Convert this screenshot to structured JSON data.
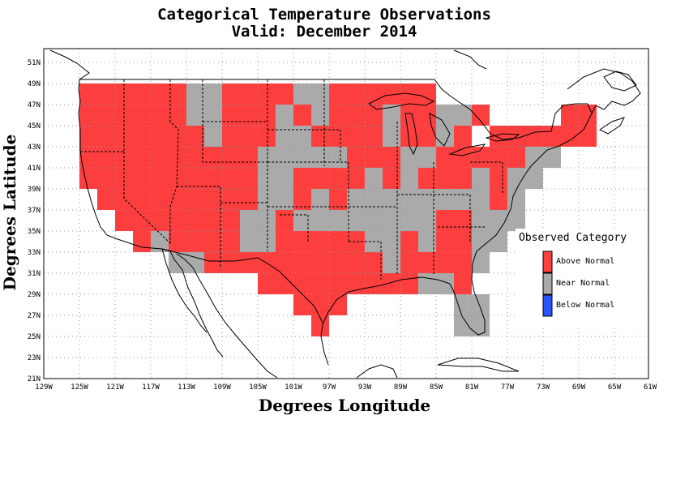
{
  "title_line1": "Categorical Temperature Observations",
  "title_line2": "Valid: December 2014",
  "xlabel": "Degrees Longitude",
  "ylabel": "Degrees Latitude",
  "colors": {
    "above": "#fd3e3e",
    "near": "#aaaaaa",
    "below": "#2b55ff"
  },
  "map_data": {
    "type": "gridded-categorical-map",
    "lon_range": [
      -129,
      -61
    ],
    "lat_range": [
      21,
      52
    ],
    "cell_size_degrees": 2,
    "x_ticks": [
      "129W",
      "125W",
      "121W",
      "117W",
      "113W",
      "109W",
      "105W",
      "101W",
      "97W",
      "93W",
      "89W",
      "85W",
      "81W",
      "77W",
      "73W",
      "69W",
      "65W",
      "61W"
    ],
    "y_ticks": [
      "21N",
      "23N",
      "25N",
      "27N",
      "29N",
      "31N",
      "33N",
      "35N",
      "37N",
      "39N",
      "41N",
      "43N",
      "45N",
      "47N",
      "49N",
      "51N"
    ],
    "legend": {
      "title": "Observed Category",
      "items": [
        {
          "label": "Above Normal",
          "color_key": "above"
        },
        {
          "label": "Near Normal",
          "color_key": "near"
        },
        {
          "label": "Below Normal",
          "color_key": "below"
        }
      ]
    },
    "cell_rows": [
      {
        "lat": 47,
        "cells": [
          [
            -125,
            -113,
            "above"
          ],
          [
            -113,
            -109,
            "near"
          ],
          [
            -109,
            -101,
            "above"
          ],
          [
            -101,
            -97,
            "near"
          ],
          [
            -97,
            -85,
            "above"
          ]
        ]
      },
      {
        "lat": 45,
        "cells": [
          [
            -125,
            -113,
            "above"
          ],
          [
            -113,
            -109,
            "near"
          ],
          [
            -109,
            -103,
            "above"
          ],
          [
            -103,
            -101,
            "near"
          ],
          [
            -101,
            -99,
            "above"
          ],
          [
            -99,
            -97,
            "near"
          ],
          [
            -97,
            -91,
            "above"
          ],
          [
            -91,
            -89,
            "near"
          ],
          [
            -89,
            -85,
            "above"
          ],
          [
            -85,
            -81,
            "near"
          ],
          [
            -81,
            -79,
            "above"
          ],
          [
            -71,
            -67,
            "above"
          ]
        ]
      },
      {
        "lat": 43,
        "cells": [
          [
            -125,
            -111,
            "above"
          ],
          [
            -111,
            -109,
            "near"
          ],
          [
            -109,
            -103,
            "above"
          ],
          [
            -103,
            -99,
            "near"
          ],
          [
            -99,
            -91,
            "above"
          ],
          [
            -91,
            -89,
            "near"
          ],
          [
            -89,
            -85,
            "above"
          ],
          [
            -85,
            -83,
            "near"
          ],
          [
            -83,
            -81,
            "above"
          ],
          [
            -79,
            -67,
            "above"
          ]
        ]
      },
      {
        "lat": 41,
        "cells": [
          [
            -125,
            -105,
            "above"
          ],
          [
            -105,
            -95,
            "near"
          ],
          [
            -95,
            -89,
            "above"
          ],
          [
            -89,
            -85,
            "near"
          ],
          [
            -85,
            -75,
            "above"
          ],
          [
            -75,
            -71,
            "near"
          ]
        ]
      },
      {
        "lat": 39,
        "cells": [
          [
            -125,
            -105,
            "above"
          ],
          [
            -105,
            -101,
            "near"
          ],
          [
            -101,
            -93,
            "above"
          ],
          [
            -93,
            -91,
            "near"
          ],
          [
            -91,
            -89,
            "above"
          ],
          [
            -89,
            -87,
            "near"
          ],
          [
            -87,
            -81,
            "above"
          ],
          [
            -81,
            -79,
            "near"
          ],
          [
            -79,
            -77,
            "above"
          ],
          [
            -77,
            -73,
            "near"
          ]
        ]
      },
      {
        "lat": 37,
        "cells": [
          [
            -123,
            -105,
            "above"
          ],
          [
            -105,
            -101,
            "near"
          ],
          [
            -101,
            -99,
            "above"
          ],
          [
            -99,
            -97,
            "near"
          ],
          [
            -97,
            -95,
            "above"
          ],
          [
            -95,
            -79,
            "near"
          ],
          [
            -79,
            -77,
            "above"
          ],
          [
            -77,
            -75,
            "near"
          ]
        ]
      },
      {
        "lat": 35,
        "cells": [
          [
            -121,
            -107,
            "above"
          ],
          [
            -107,
            -103,
            "near"
          ],
          [
            -103,
            -101,
            "above"
          ],
          [
            -101,
            -85,
            "near"
          ],
          [
            -85,
            -81,
            "above"
          ],
          [
            -81,
            -75,
            "near"
          ]
        ]
      },
      {
        "lat": 33,
        "cells": [
          [
            -119,
            -117,
            "above"
          ],
          [
            -117,
            -115,
            "near"
          ],
          [
            -115,
            -107,
            "above"
          ],
          [
            -107,
            -103,
            "near"
          ],
          [
            -103,
            -93,
            "above"
          ],
          [
            -93,
            -89,
            "near"
          ],
          [
            -89,
            -87,
            "above"
          ],
          [
            -87,
            -85,
            "near"
          ],
          [
            -85,
            -81,
            "above"
          ],
          [
            -81,
            -77,
            "near"
          ]
        ]
      },
      {
        "lat": 31,
        "cells": [
          [
            -115,
            -111,
            "near"
          ],
          [
            -111,
            -91,
            "above"
          ],
          [
            -91,
            -89,
            "near"
          ],
          [
            -89,
            -81,
            "above"
          ],
          [
            -81,
            -79,
            "near"
          ]
        ]
      },
      {
        "lat": 29,
        "cells": [
          [
            -105,
            -87,
            "above"
          ],
          [
            -87,
            -83,
            "near"
          ],
          [
            -83,
            -81,
            "above"
          ]
        ]
      },
      {
        "lat": 27,
        "cells": [
          [
            -101,
            -95,
            "above"
          ],
          [
            -83,
            -79,
            "near"
          ]
        ]
      },
      {
        "lat": 25,
        "cells": [
          [
            -99,
            -97,
            "above"
          ],
          [
            -83,
            -79,
            "near"
          ]
        ]
      }
    ]
  }
}
